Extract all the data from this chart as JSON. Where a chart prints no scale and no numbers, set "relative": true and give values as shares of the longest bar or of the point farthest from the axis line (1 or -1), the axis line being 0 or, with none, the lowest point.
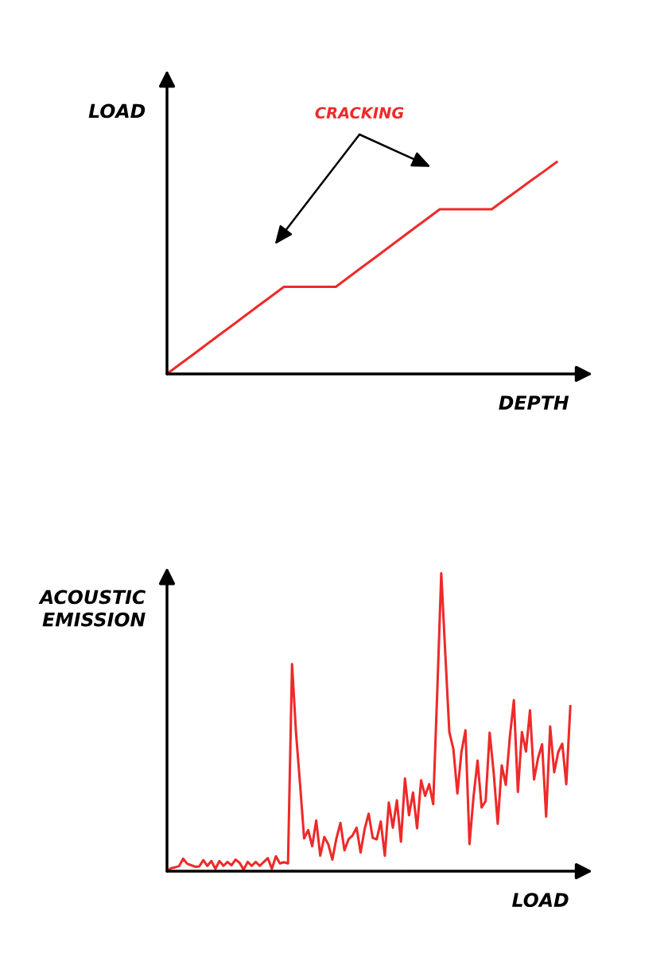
{
  "chart_data": [
    {
      "type": "line",
      "relative": true,
      "xlabel": "DEPTH",
      "ylabel": "LOAD",
      "annotations": [
        "CRACKING"
      ],
      "marker": "none",
      "line_style": "solid",
      "categories": [
        null,
        null,
        null,
        null,
        null,
        null,
        null,
        null,
        null,
        null,
        null,
        null,
        null,
        null,
        null,
        null,
        null,
        null,
        null,
        null,
        null,
        null,
        null,
        null,
        null,
        null,
        null,
        null,
        null,
        null,
        null
      ],
      "series": [
        {
          "color": "#ee2a2a",
          "values": [
            0,
            0.046,
            0.091,
            0.137,
            0.183,
            0.228,
            0.274,
            0.32,
            0.365,
            0.411,
            0.411,
            0.411,
            0.411,
            0.411,
            0.457,
            0.503,
            0.548,
            0.594,
            0.64,
            0.686,
            0.731,
            0.777,
            0.777,
            0.777,
            0.777,
            0.777,
            0.822,
            0.866,
            0.911,
            0.955,
            1.0
          ]
        }
      ]
    },
    {
      "type": "line",
      "relative": true,
      "xlabel": "LOAD",
      "ylabel": "ACOUSTIC\nEMISSION",
      "marker": "none",
      "line_style": "solid",
      "categories": [
        null,
        null,
        null,
        null,
        null,
        null,
        null,
        null,
        null,
        null,
        null,
        null,
        null,
        null,
        null,
        null,
        null,
        null,
        null,
        null,
        null,
        null,
        null,
        null,
        null,
        null,
        null,
        null,
        null,
        null,
        null,
        null,
        null,
        null,
        null,
        null,
        null,
        null,
        null,
        null,
        null,
        null,
        null,
        null,
        null,
        null,
        null,
        null,
        null,
        null,
        null,
        null,
        null,
        null,
        null,
        null,
        null,
        null,
        null,
        null,
        null,
        null,
        null,
        null,
        null,
        null,
        null,
        null,
        null,
        null,
        null,
        null,
        null,
        null,
        null,
        null,
        null,
        null,
        null,
        null,
        null,
        null,
        null,
        null,
        null,
        null,
        null,
        null,
        null,
        null,
        null,
        null,
        null,
        null,
        null,
        null,
        null,
        null,
        null,
        null,
        null
      ],
      "series": [
        {
          "color": "#ee2a2a",
          "values": [
            0,
            0.01,
            0.013,
            0.017,
            0.042,
            0.025,
            0.02,
            0.015,
            0.016,
            0.037,
            0.018,
            0.034,
            0.008,
            0.034,
            0.018,
            0.031,
            0.02,
            0.039,
            0.028,
            0.005,
            0.031,
            0.018,
            0.031,
            0.018,
            0.031,
            0.044,
            0.008,
            0.05,
            0.026,
            0.03,
            0.026,
            0.695,
            0.463,
            0.29,
            0.11,
            0.138,
            0.084,
            0.17,
            0.052,
            0.115,
            0.09,
            0.039,
            0.11,
            0.162,
            0.07,
            0.107,
            0.12,
            0.146,
            0.063,
            0.141,
            0.193,
            0.112,
            0.107,
            0.167,
            0.052,
            0.23,
            0.146,
            0.238,
            0.099,
            0.311,
            0.188,
            0.264,
            0.144,
            0.305,
            0.253,
            0.292,
            0.225,
            0.6,
            1.0,
            0.73,
            0.467,
            0.41,
            0.261,
            0.4,
            0.473,
            0.091,
            0.25,
            0.371,
            0.214,
            0.235,
            0.465,
            0.33,
            0.159,
            0.355,
            0.29,
            0.45,
            0.574,
            0.266,
            0.467,
            0.402,
            0.54,
            0.308,
            0.38,
            0.426,
            0.183,
            0.486,
            0.332,
            0.4,
            0.428,
            0.292,
            0.554
          ]
        }
      ]
    }
  ]
}
